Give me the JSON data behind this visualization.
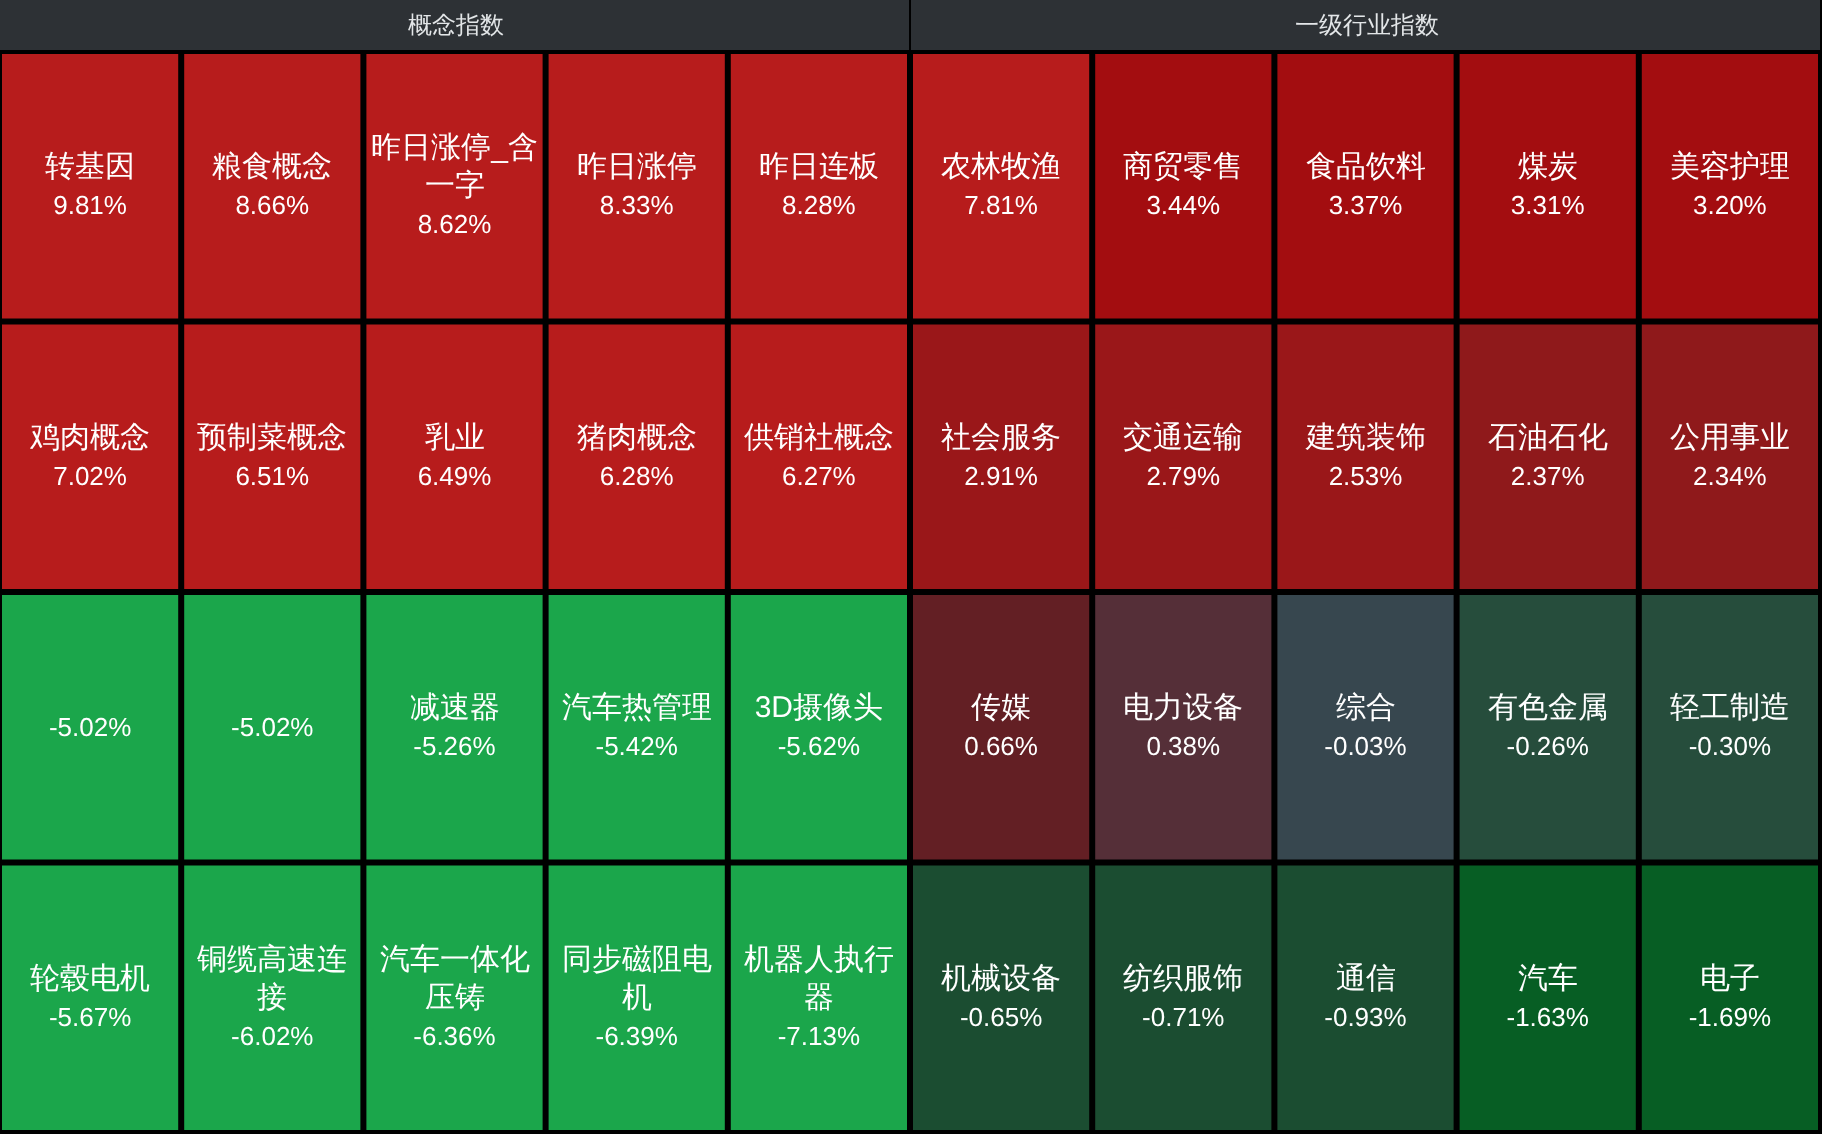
{
  "chart_data": [
    {
      "type": "other",
      "title": "概念指数",
      "categories": [
        "转基因",
        "粮食概念",
        "昨日涨停_含一字",
        "昨日涨停",
        "昨日连板",
        "鸡肉概念",
        "预制菜概念",
        "乳业",
        "猪肉概念",
        "供销社概念",
        null,
        null,
        "减速器",
        "汽车热管理",
        "3D摄像头",
        "轮毂电机",
        "铜缆高速连接",
        "汽车一体化压铸",
        "同步磁阻电机",
        "机器人执行器"
      ],
      "values": [
        9.81,
        8.66,
        8.62,
        8.33,
        8.28,
        7.02,
        6.51,
        6.49,
        6.28,
        6.27,
        -5.02,
        -5.02,
        -5.26,
        -5.42,
        -5.62,
        -5.67,
        -6.02,
        -6.36,
        -6.39,
        -7.13
      ],
      "value_labels": [
        "9.81%",
        "8.66%",
        "8.62%",
        "8.33%",
        "8.28%",
        "7.02%",
        "6.51%",
        "6.49%",
        "6.28%",
        "6.27%",
        "-5.02%",
        "-5.02%",
        "-5.26%",
        "-5.42%",
        "-5.62%",
        "-5.67%",
        "-6.02%",
        "-6.36%",
        "-6.39%",
        "-7.13%"
      ],
      "colors": [
        "#b71c1c",
        "#b71c1c",
        "#b71c1c",
        "#b71c1c",
        "#b71c1c",
        "#b71c1c",
        "#b71c1c",
        "#b71c1c",
        "#b71c1c",
        "#b71c1c",
        "#1ba64b",
        "#1ba64b",
        "#1ba64b",
        "#1ba64b",
        "#1ba64b",
        "#1ba64b",
        "#1ba64b",
        "#1ba64b",
        "#1ba64b",
        "#1ba64b"
      ]
    },
    {
      "type": "other",
      "title": "一级行业指数",
      "categories": [
        "农林牧渔",
        "商贸零售",
        "食品饮料",
        "煤炭",
        "美容护理",
        "社会服务",
        "交通运输",
        "建筑装饰",
        "石油石化",
        "公用事业",
        "传媒",
        "电力设备",
        "综合",
        "有色金属",
        "轻工制造",
        "机械设备",
        "纺织服饰",
        "通信",
        "汽车",
        "电子"
      ],
      "values": [
        7.81,
        3.44,
        3.37,
        3.31,
        3.2,
        2.91,
        2.79,
        2.53,
        2.37,
        2.34,
        0.66,
        0.38,
        -0.03,
        -0.26,
        -0.3,
        -0.65,
        -0.71,
        -0.93,
        -1.63,
        -1.69
      ],
      "value_labels": [
        "7.81%",
        "3.44%",
        "3.37%",
        "3.31%",
        "3.20%",
        "2.91%",
        "2.79%",
        "2.53%",
        "2.37%",
        "2.34%",
        "0.66%",
        "0.38%",
        "-0.03%",
        "-0.26%",
        "-0.30%",
        "-0.65%",
        "-0.71%",
        "-0.93%",
        "-1.63%",
        "-1.69%"
      ],
      "colors": [
        "#b71c1c",
        "#a30d10",
        "#a30d10",
        "#a30d10",
        "#a30d10",
        "#9a1719",
        "#9a1719",
        "#9a1719",
        "#8f191b",
        "#8f191b",
        "#631f24",
        "#552f38",
        "#37474f",
        "#264d3c",
        "#264d3c",
        "#1b4d31",
        "#1b4d31",
        "#1b4d31",
        "#075e24",
        "#075e24"
      ]
    }
  ]
}
